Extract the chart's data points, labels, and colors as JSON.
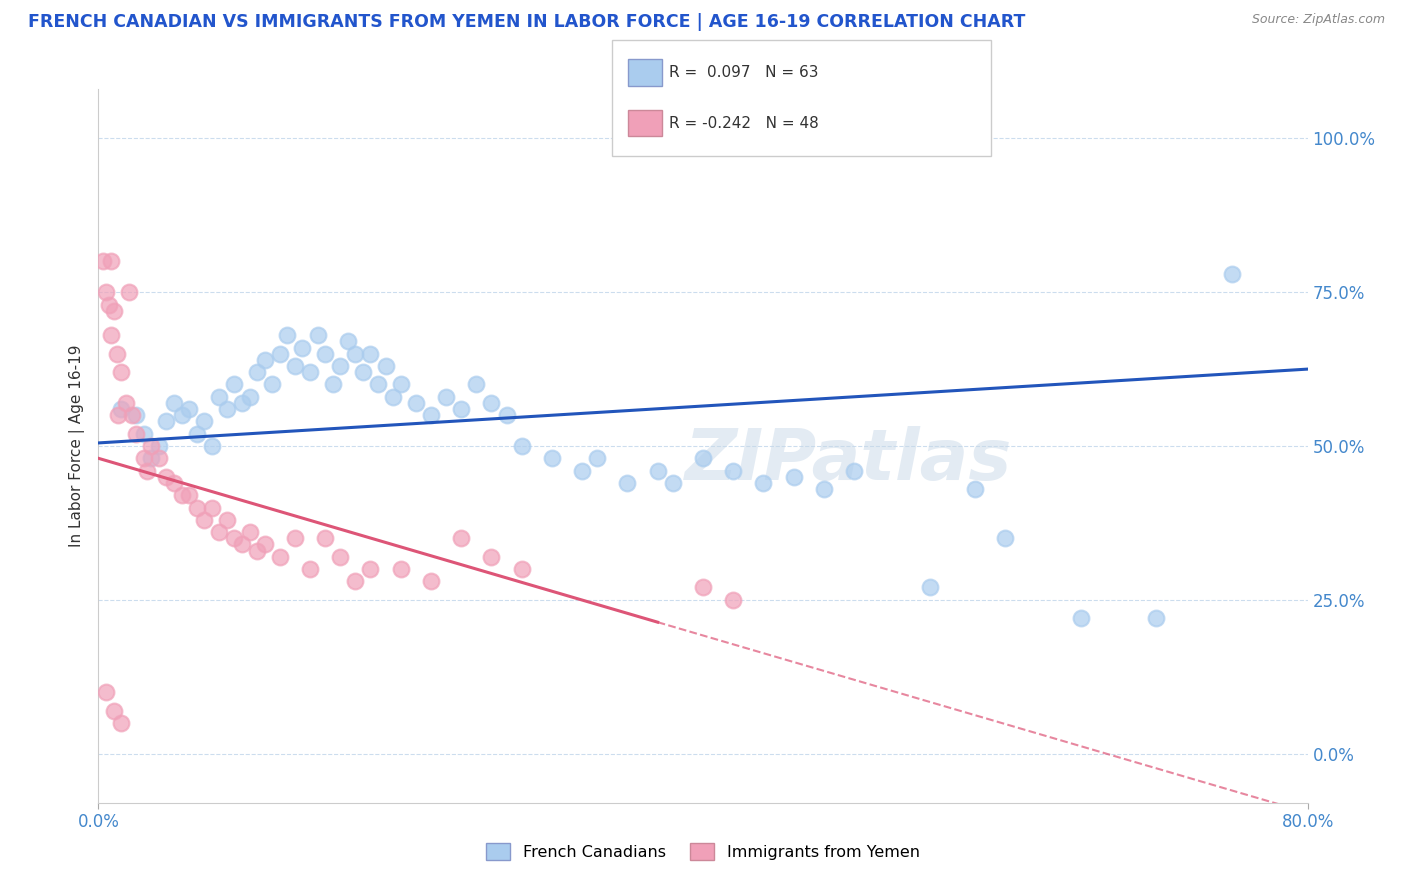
{
  "title": "FRENCH CANADIAN VS IMMIGRANTS FROM YEMEN IN LABOR FORCE | AGE 16-19 CORRELATION CHART",
  "source": "Source: ZipAtlas.com",
  "ylabel": "In Labor Force | Age 16-19",
  "right_yticks": [
    "0.0%",
    "25.0%",
    "50.0%",
    "75.0%",
    "100.0%"
  ],
  "right_ytick_vals": [
    0.0,
    25.0,
    50.0,
    75.0,
    100.0
  ],
  "xmin": 0.0,
  "xmax": 80.0,
  "ymin": -8.0,
  "ymax": 108.0,
  "watermark": "ZIPatlas",
  "legend_blue_label": "French Canadians",
  "legend_pink_label": "Immigrants from Yemen",
  "R_blue": 0.097,
  "N_blue": 63,
  "R_pink": -0.242,
  "N_pink": 48,
  "blue_color": "#aaccee",
  "blue_line_color": "#2255bb",
  "pink_color": "#f0a0b8",
  "pink_line_color": "#dd5577",
  "title_color": "#2255cc",
  "source_color": "#888888",
  "blue_line_x0": 0.0,
  "blue_line_y0": 50.5,
  "blue_line_x1": 80.0,
  "blue_line_y1": 62.5,
  "pink_line_x0": 0.0,
  "pink_line_y0": 48.0,
  "pink_solid_x1": 37.0,
  "pink_line_slope": -0.72,
  "blue_scatter": [
    [
      1.5,
      56.0
    ],
    [
      2.5,
      55.0
    ],
    [
      3.0,
      52.0
    ],
    [
      3.5,
      48.0
    ],
    [
      4.0,
      50.0
    ],
    [
      4.5,
      54.0
    ],
    [
      5.0,
      57.0
    ],
    [
      5.5,
      55.0
    ],
    [
      6.0,
      56.0
    ],
    [
      6.5,
      52.0
    ],
    [
      7.0,
      54.0
    ],
    [
      7.5,
      50.0
    ],
    [
      8.0,
      58.0
    ],
    [
      8.5,
      56.0
    ],
    [
      9.0,
      60.0
    ],
    [
      9.5,
      57.0
    ],
    [
      10.0,
      58.0
    ],
    [
      10.5,
      62.0
    ],
    [
      11.0,
      64.0
    ],
    [
      11.5,
      60.0
    ],
    [
      12.0,
      65.0
    ],
    [
      12.5,
      68.0
    ],
    [
      13.0,
      63.0
    ],
    [
      13.5,
      66.0
    ],
    [
      14.0,
      62.0
    ],
    [
      14.5,
      68.0
    ],
    [
      15.0,
      65.0
    ],
    [
      15.5,
      60.0
    ],
    [
      16.0,
      63.0
    ],
    [
      16.5,
      67.0
    ],
    [
      17.0,
      65.0
    ],
    [
      17.5,
      62.0
    ],
    [
      18.0,
      65.0
    ],
    [
      18.5,
      60.0
    ],
    [
      19.0,
      63.0
    ],
    [
      19.5,
      58.0
    ],
    [
      20.0,
      60.0
    ],
    [
      21.0,
      57.0
    ],
    [
      22.0,
      55.0
    ],
    [
      23.0,
      58.0
    ],
    [
      24.0,
      56.0
    ],
    [
      25.0,
      60.0
    ],
    [
      26.0,
      57.0
    ],
    [
      27.0,
      55.0
    ],
    [
      28.0,
      50.0
    ],
    [
      30.0,
      48.0
    ],
    [
      32.0,
      46.0
    ],
    [
      33.0,
      48.0
    ],
    [
      35.0,
      44.0
    ],
    [
      37.0,
      46.0
    ],
    [
      38.0,
      44.0
    ],
    [
      40.0,
      48.0
    ],
    [
      42.0,
      46.0
    ],
    [
      44.0,
      44.0
    ],
    [
      46.0,
      45.0
    ],
    [
      48.0,
      43.0
    ],
    [
      50.0,
      46.0
    ],
    [
      55.0,
      27.0
    ],
    [
      58.0,
      43.0
    ],
    [
      60.0,
      35.0
    ],
    [
      65.0,
      22.0
    ],
    [
      70.0,
      22.0
    ],
    [
      75.0,
      78.0
    ]
  ],
  "pink_scatter": [
    [
      0.3,
      80.0
    ],
    [
      0.5,
      75.0
    ],
    [
      0.7,
      73.0
    ],
    [
      0.8,
      68.0
    ],
    [
      1.0,
      72.0
    ],
    [
      1.2,
      65.0
    ],
    [
      1.3,
      55.0
    ],
    [
      1.5,
      62.0
    ],
    [
      1.8,
      57.0
    ],
    [
      2.0,
      75.0
    ],
    [
      2.2,
      55.0
    ],
    [
      2.5,
      52.0
    ],
    [
      3.0,
      48.0
    ],
    [
      3.2,
      46.0
    ],
    [
      3.5,
      50.0
    ],
    [
      4.0,
      48.0
    ],
    [
      4.5,
      45.0
    ],
    [
      5.0,
      44.0
    ],
    [
      5.5,
      42.0
    ],
    [
      6.0,
      42.0
    ],
    [
      6.5,
      40.0
    ],
    [
      7.0,
      38.0
    ],
    [
      7.5,
      40.0
    ],
    [
      8.0,
      36.0
    ],
    [
      8.5,
      38.0
    ],
    [
      9.0,
      35.0
    ],
    [
      9.5,
      34.0
    ],
    [
      10.0,
      36.0
    ],
    [
      10.5,
      33.0
    ],
    [
      11.0,
      34.0
    ],
    [
      12.0,
      32.0
    ],
    [
      13.0,
      35.0
    ],
    [
      14.0,
      30.0
    ],
    [
      15.0,
      35.0
    ],
    [
      16.0,
      32.0
    ],
    [
      17.0,
      28.0
    ],
    [
      18.0,
      30.0
    ],
    [
      20.0,
      30.0
    ],
    [
      22.0,
      28.0
    ],
    [
      24.0,
      35.0
    ],
    [
      26.0,
      32.0
    ],
    [
      28.0,
      30.0
    ],
    [
      0.5,
      10.0
    ],
    [
      1.0,
      7.0
    ],
    [
      1.5,
      5.0
    ],
    [
      40.0,
      27.0
    ],
    [
      42.0,
      25.0
    ],
    [
      0.8,
      80.0
    ]
  ]
}
